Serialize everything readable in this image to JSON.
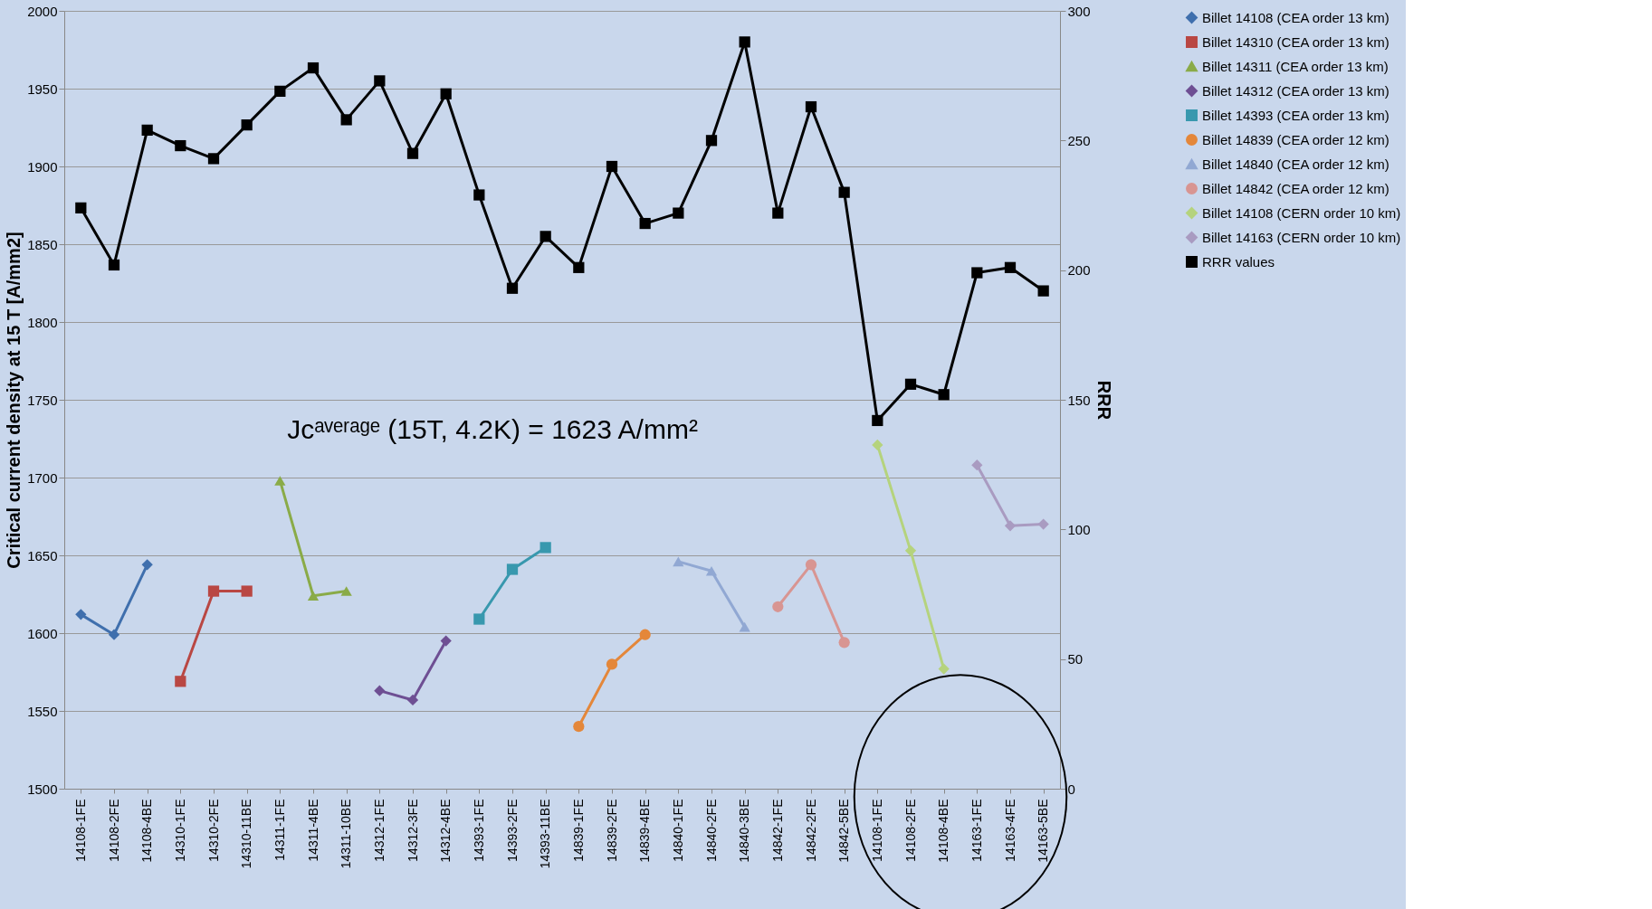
{
  "chart_data": {
    "type": "line",
    "ylabel": "Critical current density at 15 T   [A/mm2]",
    "y2label": "RRR",
    "categories": [
      "14108-1FE",
      "14108-2FE",
      "14108-4BE",
      "14310-1FE",
      "14310-2FE",
      "14310-11BE",
      "14311-1FE",
      "14311-4BE",
      "14311-10BE",
      "14312-1FE",
      "14312-3FE",
      "14312-4BE",
      "14393-1FE",
      "14393-2FE",
      "14393-11BE",
      "14839-1FE",
      "14839-2FE",
      "14839-4BE",
      "14840-1FE",
      "14840-2FE",
      "14840-3BE",
      "14842-1FE",
      "14842-2FE",
      "14842-5BE",
      "14108-1FE",
      "14108-2FE",
      "14108-4BE",
      "14163-1FE",
      "14163-4FE",
      "14163-5BE"
    ],
    "series": [
      {
        "name": "Billet 14108 (CEA order 13 km)",
        "color": "#3f6fad",
        "marker": "diamond",
        "values": [
          1612,
          1599,
          1644,
          null,
          null,
          null,
          null,
          null,
          null,
          null,
          null,
          null,
          null,
          null,
          null,
          null,
          null,
          null,
          null,
          null,
          null,
          null,
          null,
          null,
          null,
          null,
          null,
          null,
          null,
          null
        ]
      },
      {
        "name": "Billet 14310 (CEA order 13 km)",
        "color": "#b94743",
        "marker": "square",
        "values": [
          null,
          null,
          null,
          1569,
          1627,
          1627,
          null,
          null,
          null,
          null,
          null,
          null,
          null,
          null,
          null,
          null,
          null,
          null,
          null,
          null,
          null,
          null,
          null,
          null,
          null,
          null,
          null,
          null,
          null,
          null
        ]
      },
      {
        "name": "Billet 14311 (CEA order 13 km)",
        "color": "#8aab48",
        "marker": "triangle",
        "values": [
          null,
          null,
          null,
          null,
          null,
          null,
          1698,
          1624,
          1627,
          null,
          null,
          null,
          null,
          null,
          null,
          null,
          null,
          null,
          null,
          null,
          null,
          null,
          null,
          null,
          null,
          null,
          null,
          null,
          null,
          null
        ]
      },
      {
        "name": "Billet 14312 (CEA order 13 km)",
        "color": "#6e4f93",
        "marker": "diamond",
        "values": [
          null,
          null,
          null,
          null,
          null,
          null,
          null,
          null,
          null,
          1563,
          1557,
          1595,
          null,
          null,
          null,
          null,
          null,
          null,
          null,
          null,
          null,
          null,
          null,
          null,
          null,
          null,
          null,
          null,
          null,
          null
        ]
      },
      {
        "name": "Billet 14393 (CEA order 13 km)",
        "color": "#3898ae",
        "marker": "square",
        "values": [
          null,
          null,
          null,
          null,
          null,
          null,
          null,
          null,
          null,
          null,
          null,
          null,
          1609,
          1641,
          1655,
          null,
          null,
          null,
          null,
          null,
          null,
          null,
          null,
          null,
          null,
          null,
          null,
          null,
          null,
          null
        ]
      },
      {
        "name": "Billet 14839 (CEA order 12 km)",
        "color": "#e4873a",
        "marker": "circle",
        "values": [
          null,
          null,
          null,
          null,
          null,
          null,
          null,
          null,
          null,
          null,
          null,
          null,
          null,
          null,
          null,
          1540,
          1580,
          1599,
          null,
          null,
          null,
          null,
          null,
          null,
          null,
          null,
          null,
          null,
          null,
          null
        ]
      },
      {
        "name": "Billet 14840 (CEA order 12 km)",
        "color": "#91a8d3",
        "marker": "triangle",
        "values": [
          null,
          null,
          null,
          null,
          null,
          null,
          null,
          null,
          null,
          null,
          null,
          null,
          null,
          null,
          null,
          null,
          null,
          null,
          1646,
          1640,
          1604,
          null,
          null,
          null,
          null,
          null,
          null,
          null,
          null,
          null
        ]
      },
      {
        "name": "Billet 14842 (CEA order 12 km)",
        "color": "#d89592",
        "marker": "circle",
        "values": [
          null,
          null,
          null,
          null,
          null,
          null,
          null,
          null,
          null,
          null,
          null,
          null,
          null,
          null,
          null,
          null,
          null,
          null,
          null,
          null,
          null,
          1617,
          1644,
          1594,
          null,
          null,
          null,
          null,
          null,
          null
        ]
      },
      {
        "name": "Billet 14108 (CERN order 10 km)",
        "color": "#b5d37d",
        "marker": "diamond",
        "values": [
          null,
          null,
          null,
          null,
          null,
          null,
          null,
          null,
          null,
          null,
          null,
          null,
          null,
          null,
          null,
          null,
          null,
          null,
          null,
          null,
          null,
          null,
          null,
          null,
          1721,
          1653,
          1577,
          null,
          null,
          null
        ]
      },
      {
        "name": "Billet 14163 (CERN order 10 km)",
        "color": "#a99bc1",
        "marker": "diamond",
        "values": [
          null,
          null,
          null,
          null,
          null,
          null,
          null,
          null,
          null,
          null,
          null,
          null,
          null,
          null,
          null,
          null,
          null,
          null,
          null,
          null,
          null,
          null,
          null,
          null,
          null,
          null,
          null,
          1708,
          1669,
          1670
        ]
      },
      {
        "name": "RRR values",
        "color": "#000000",
        "marker": "square",
        "axis": "y2",
        "values": [
          224,
          202,
          254,
          248,
          243,
          256,
          269,
          278,
          258,
          273,
          245,
          268,
          229,
          193,
          213,
          201,
          240,
          218,
          222,
          250,
          288,
          222,
          263,
          230,
          142,
          156,
          152,
          199,
          201,
          192
        ]
      }
    ],
    "ylim": [
      1500,
      2000
    ],
    "yticks": [
      1500,
      1550,
      1600,
      1650,
      1700,
      1750,
      1800,
      1850,
      1900,
      1950,
      2000
    ],
    "y2lim": [
      0,
      300
    ],
    "y2ticks": [
      0,
      50,
      100,
      150,
      200,
      250,
      300
    ],
    "grid": "y",
    "legend": "right",
    "line_style": "solid",
    "annotations": [
      "Jcᵃᵛᵉʳᵃᵍᵉ (15T, 4.2K) = 1623 A/mm²"
    ]
  }
}
